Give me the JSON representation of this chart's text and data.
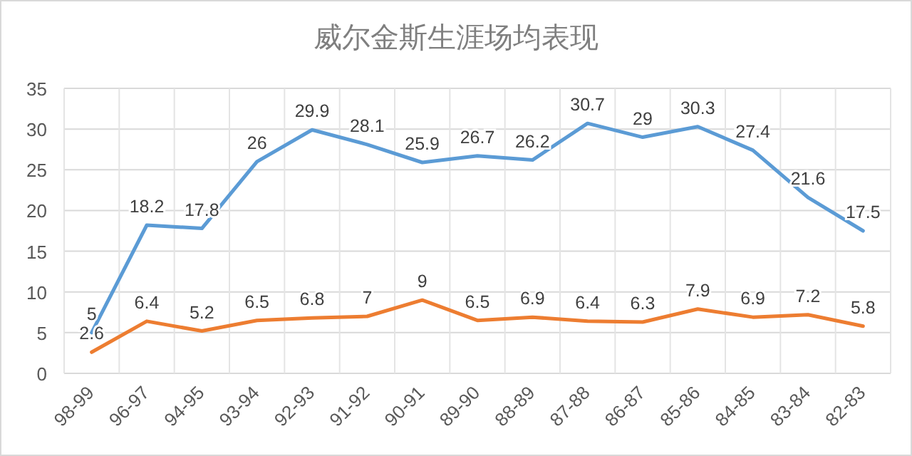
{
  "chart_data": {
    "type": "line",
    "title": "威尔金斯生涯场均表现",
    "categories": [
      "98-99",
      "96-97",
      "94-95",
      "93-94",
      "92-93",
      "91-92",
      "90-91",
      "89-90",
      "88-89",
      "87-88",
      "86-87",
      "85-86",
      "84-85",
      "83-84",
      "82-83"
    ],
    "series": [
      {
        "color": "#5b9bd5",
        "values": [
          5,
          18.2,
          17.8,
          26,
          29.9,
          28.1,
          25.9,
          26.7,
          26.2,
          30.7,
          29,
          30.3,
          27.4,
          21.6,
          17.5
        ]
      },
      {
        "color": "#ed7d31",
        "values": [
          2.6,
          6.4,
          5.2,
          6.5,
          6.8,
          7,
          9,
          6.5,
          6.9,
          6.4,
          6.3,
          7.9,
          6.9,
          7.2,
          5.8
        ]
      }
    ],
    "ylim": [
      0,
      35
    ],
    "yticks": [
      0,
      5,
      10,
      15,
      20,
      25,
      30,
      35
    ],
    "grid": true,
    "data_labels": true,
    "marker": "none",
    "line_style": "solid"
  }
}
